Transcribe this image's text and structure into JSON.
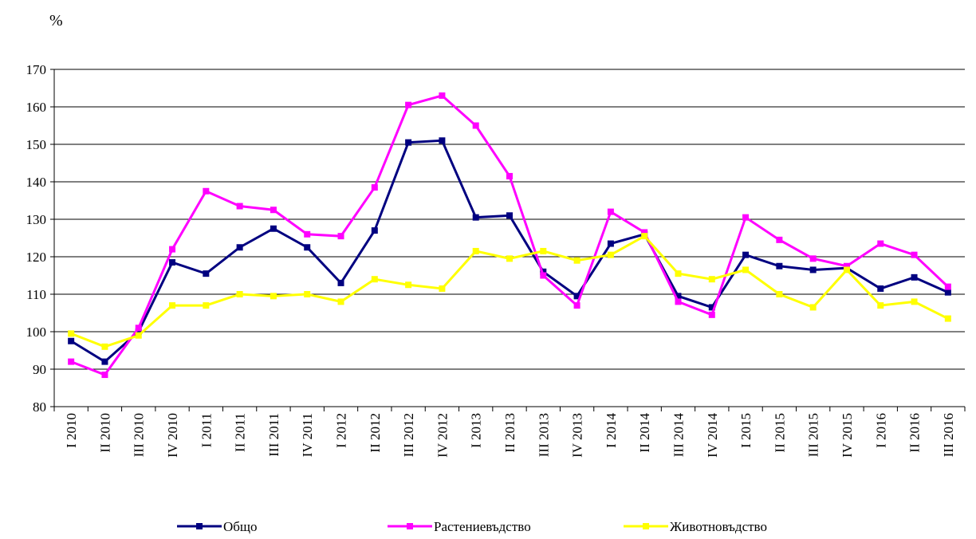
{
  "chart_data": {
    "type": "line",
    "y_label": "%",
    "categories": [
      "I 2010",
      "II 2010",
      "III 2010",
      "IV 2010",
      "I 2011",
      "II 2011",
      "III 2011",
      "IV 2011",
      "I 2012",
      "II 2012",
      "III 2012",
      "IV 2012",
      "I 2013",
      "II 2013",
      "III 2013",
      "IV 2013",
      "I 2014",
      "II 2014",
      "III 2014",
      "IV 2014",
      "I 2015",
      "II 2015",
      "III 2015",
      "IV 2015",
      "I 2016",
      "II 2016",
      "III 2016"
    ],
    "series": [
      {
        "name": "Общо",
        "color": "#000080",
        "values": [
          97.5,
          92,
          100,
          118.5,
          115.5,
          122.5,
          127.5,
          122.5,
          113,
          127,
          150.5,
          151,
          130.5,
          131,
          116,
          109.5,
          123.5,
          126,
          109.5,
          106.5,
          120.5,
          117.5,
          116.5,
          117,
          111.5,
          114.5,
          110.5
        ]
      },
      {
        "name": "Растениевъдство",
        "color": "#ff00ff",
        "values": [
          92,
          88.5,
          101,
          122,
          137.5,
          133.5,
          132.5,
          126,
          125.5,
          138.5,
          160.5,
          163,
          155,
          141.5,
          115,
          107,
          132,
          126.5,
          108,
          104.5,
          130.5,
          124.5,
          119.5,
          117.5,
          123.5,
          120.5,
          112
        ]
      },
      {
        "name": "Животновъдство",
        "color": "#ffff00",
        "values": [
          99.5,
          96,
          99,
          107,
          107,
          110,
          109.5,
          110,
          108,
          114,
          112.5,
          111.5,
          121.5,
          119.5,
          121.5,
          119,
          120.5,
          125.5,
          115.5,
          114,
          116.5,
          110,
          106.5,
          116.5,
          107,
          108,
          103.5
        ]
      }
    ],
    "ylim": [
      80,
      170
    ],
    "yticks": [
      80,
      90,
      100,
      110,
      120,
      130,
      140,
      150,
      160,
      170
    ],
    "grid": true
  }
}
